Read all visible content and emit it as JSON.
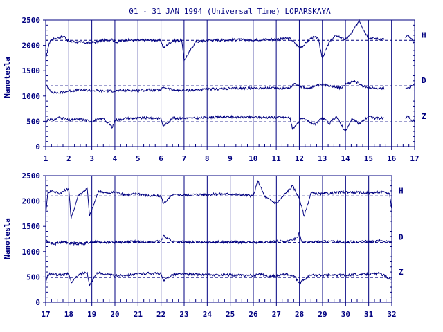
{
  "chart_data": [
    {
      "type": "line",
      "title": "01 - 31 JAN 1994 (Universal Time) LOPARSKAYA",
      "ylabel": "Nanotesla",
      "xlabel": "",
      "x_ticks": [
        "1",
        "2",
        "3",
        "4",
        "5",
        "6",
        "7",
        "8",
        "9",
        "10",
        "11",
        "12",
        "13",
        "14",
        "15",
        "16",
        "17"
      ],
      "y_ticks": [
        "0",
        "500",
        "1000",
        "1500",
        "2000",
        "2500"
      ],
      "ylim": [
        0,
        2500
      ],
      "xlim": [
        1,
        17
      ],
      "data_ends_day": 15.7,
      "data_gap": [
        15.7,
        16.6
      ],
      "baselines": [
        {
          "name": "H",
          "value": 2100
        },
        {
          "name": "D",
          "value": 1200
        },
        {
          "name": "Z",
          "value": 490
        }
      ],
      "series": [
        {
          "name": "H",
          "x": [
            1.0,
            1.1,
            1.2,
            1.5,
            1.8,
            2.0,
            2.5,
            3.0,
            3.5,
            3.9,
            4.0,
            4.5,
            5.0,
            5.5,
            6.0,
            6.1,
            6.5,
            6.9,
            7.0,
            7.5,
            8.0,
            9.0,
            10.0,
            11.0,
            11.6,
            11.8,
            12.0,
            12.2,
            12.5,
            12.8,
            13.0,
            13.3,
            13.6,
            14.0,
            14.3,
            14.6,
            14.8,
            15.0,
            15.3,
            15.7,
            16.6,
            16.7,
            16.9,
            17.0
          ],
          "values": [
            1700,
            1950,
            2100,
            2150,
            2180,
            2080,
            2060,
            2050,
            2100,
            2120,
            2060,
            2110,
            2100,
            2100,
            2100,
            1950,
            2090,
            2100,
            1700,
            2070,
            2100,
            2110,
            2110,
            2120,
            2140,
            2050,
            1960,
            2000,
            2150,
            2160,
            1750,
            2060,
            2200,
            2110,
            2260,
            2500,
            2300,
            2150,
            2140,
            2120,
            2150,
            2200,
            2100,
            2050
          ]
        },
        {
          "name": "D",
          "x": [
            1.0,
            1.1,
            1.3,
            1.6,
            2.0,
            2.5,
            3.0,
            3.5,
            4.0,
            4.5,
            5.0,
            5.5,
            6.0,
            6.1,
            6.5,
            7.0,
            7.5,
            8.0,
            9.0,
            10.0,
            11.0,
            11.6,
            11.8,
            12.0,
            12.3,
            12.6,
            13.0,
            13.4,
            13.8,
            14.0,
            14.4,
            14.8,
            15.2,
            15.7,
            16.6,
            16.8,
            17.0
          ],
          "values": [
            1250,
            1150,
            1080,
            1060,
            1100,
            1120,
            1110,
            1100,
            1100,
            1110,
            1110,
            1120,
            1110,
            1180,
            1120,
            1110,
            1120,
            1130,
            1150,
            1160,
            1150,
            1160,
            1250,
            1200,
            1150,
            1180,
            1230,
            1200,
            1160,
            1220,
            1300,
            1180,
            1160,
            1150,
            1150,
            1180,
            1220
          ]
        },
        {
          "name": "Z",
          "x": [
            1.0,
            1.1,
            1.3,
            1.6,
            2.0,
            2.5,
            3.0,
            3.5,
            3.9,
            4.0,
            4.5,
            5.0,
            5.5,
            6.0,
            6.1,
            6.5,
            7.0,
            7.5,
            8.0,
            9.0,
            10.0,
            11.0,
            11.6,
            11.7,
            11.9,
            12.1,
            12.4,
            12.7,
            13.0,
            13.3,
            13.6,
            14.0,
            14.3,
            14.6,
            15.0,
            15.3,
            15.7,
            16.6,
            16.7,
            16.9,
            17.0
          ],
          "values": [
            450,
            550,
            520,
            580,
            520,
            540,
            500,
            560,
            380,
            520,
            560,
            560,
            570,
            560,
            400,
            560,
            560,
            560,
            580,
            590,
            580,
            580,
            570,
            350,
            450,
            550,
            500,
            430,
            580,
            450,
            600,
            300,
            550,
            450,
            600,
            560,
            560,
            560,
            600,
            500,
            520
          ]
        }
      ]
    },
    {
      "type": "line",
      "title": "",
      "ylabel": "Nanotesla",
      "xlabel": "",
      "x_ticks": [
        "17",
        "18",
        "19",
        "20",
        "21",
        "22",
        "23",
        "24",
        "25",
        "26",
        "27",
        "28",
        "29",
        "30",
        "31",
        "32"
      ],
      "y_ticks": [
        "0",
        "500",
        "1000",
        "1500",
        "2000",
        "2500"
      ],
      "ylim": [
        0,
        2500
      ],
      "xlim": [
        17,
        32
      ],
      "baselines": [
        {
          "name": "H",
          "value": 2100
        },
        {
          "name": "D",
          "value": 1180
        },
        {
          "name": "Z",
          "value": 490
        }
      ],
      "series": [
        {
          "name": "H",
          "x": [
            17.0,
            17.1,
            17.3,
            17.6,
            18.0,
            18.1,
            18.4,
            18.8,
            18.9,
            19.3,
            19.7,
            20.0,
            20.5,
            21.0,
            21.5,
            22.0,
            22.1,
            22.5,
            23.0,
            23.5,
            24.0,
            25.0,
            26.0,
            26.2,
            26.5,
            27.0,
            27.3,
            27.7,
            28.0,
            28.2,
            28.5,
            29.0,
            29.5,
            30.0,
            30.5,
            31.0,
            31.5,
            31.9,
            32.0
          ],
          "values": [
            1750,
            2180,
            2200,
            2150,
            2250,
            1650,
            2100,
            2250,
            1700,
            2200,
            2150,
            2180,
            2120,
            2150,
            2100,
            2100,
            1950,
            2120,
            2120,
            2130,
            2130,
            2140,
            2100,
            2400,
            2080,
            1950,
            2100,
            2300,
            2050,
            1700,
            2160,
            2140,
            2160,
            2180,
            2170,
            2160,
            2180,
            2150,
            1850
          ]
        },
        {
          "name": "D",
          "x": [
            17.0,
            17.1,
            17.4,
            17.8,
            18.0,
            18.3,
            18.6,
            19.0,
            19.5,
            20.0,
            20.5,
            21.0,
            21.5,
            22.0,
            22.1,
            22.5,
            23.0,
            24.0,
            25.0,
            26.0,
            26.5,
            27.0,
            27.5,
            27.9,
            28.0,
            28.1,
            28.5,
            29.0,
            30.0,
            31.0,
            31.5,
            32.0
          ],
          "values": [
            1250,
            1180,
            1150,
            1200,
            1170,
            1160,
            1150,
            1200,
            1180,
            1190,
            1190,
            1200,
            1190,
            1200,
            1320,
            1200,
            1190,
            1190,
            1190,
            1180,
            1180,
            1200,
            1200,
            1280,
            1380,
            1200,
            1190,
            1200,
            1190,
            1200,
            1210,
            1190
          ]
        },
        {
          "name": "Z",
          "x": [
            17.0,
            17.1,
            17.3,
            17.6,
            18.0,
            18.1,
            18.5,
            18.8,
            18.9,
            19.2,
            19.6,
            20.0,
            20.5,
            21.0,
            21.5,
            22.0,
            22.1,
            22.5,
            23.0,
            24.0,
            25.0,
            26.0,
            26.3,
            26.6,
            27.0,
            27.4,
            27.8,
            28.0,
            28.2,
            28.5,
            29.0,
            30.0,
            31.0,
            31.5,
            32.0
          ],
          "values": [
            380,
            550,
            560,
            540,
            560,
            400,
            560,
            600,
            330,
            580,
            560,
            520,
            540,
            560,
            580,
            560,
            420,
            550,
            560,
            540,
            540,
            530,
            570,
            510,
            520,
            560,
            500,
            380,
            450,
            540,
            530,
            540,
            560,
            570,
            450
          ]
        }
      ]
    }
  ]
}
